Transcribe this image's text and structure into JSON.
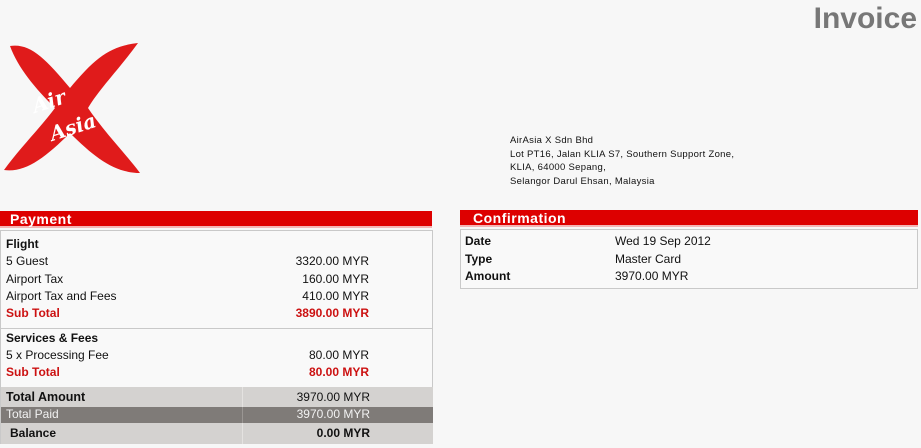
{
  "title": "Invoice",
  "logo_text": "AirAsia X",
  "address": [
    "AirAsia X Sdn Bhd",
    "Lot PT16, Jalan KLIA S7, Southern Support Zone,",
    "KLIA, 64000 Sepang,",
    "Selangor Darul Ehsan, Malaysia"
  ],
  "payment": {
    "header": "Payment",
    "flight": {
      "heading": "Flight",
      "items": [
        {
          "label": "5 Guest",
          "value": "3320.00 MYR"
        },
        {
          "label": "Airport Tax",
          "value": "160.00 MYR"
        },
        {
          "label": "Airport Tax and Fees",
          "value": "410.00 MYR"
        }
      ],
      "subtotal_label": "Sub Total",
      "subtotal_value": "3890.00 MYR"
    },
    "services": {
      "heading": "Services & Fees",
      "items": [
        {
          "label": "5 x Processing Fee",
          "value": "80.00 MYR"
        }
      ],
      "subtotal_label": "Sub Total",
      "subtotal_value": "80.00 MYR"
    },
    "total_amount": {
      "label": "Total Amount",
      "value": "3970.00 MYR"
    },
    "total_paid": {
      "label": "Total Paid",
      "value": "3970.00 MYR"
    },
    "balance": {
      "label": "Balance",
      "value": "0.00 MYR"
    }
  },
  "confirmation": {
    "header": "Confirmation",
    "rows": [
      {
        "label": "Date",
        "value": "Wed 19 Sep 2012"
      },
      {
        "label": "Type",
        "value": "Master Card"
      },
      {
        "label": "Amount",
        "value": "3970.00 MYR"
      }
    ]
  },
  "colors": {
    "accent": "#dd0000",
    "subtotal": "#cc1111",
    "band_light": "#d4d2d0",
    "band_dark": "#7f7b78"
  }
}
